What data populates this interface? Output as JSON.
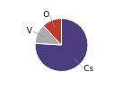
{
  "chart_data": {
    "type": "pie",
    "categories": [
      "Cs",
      "V",
      "O"
    ],
    "values": [
      76,
      12,
      12
    ],
    "colors": [
      "#4d3d7f",
      "#aaaaaf",
      "#c0392b"
    ]
  }
}
